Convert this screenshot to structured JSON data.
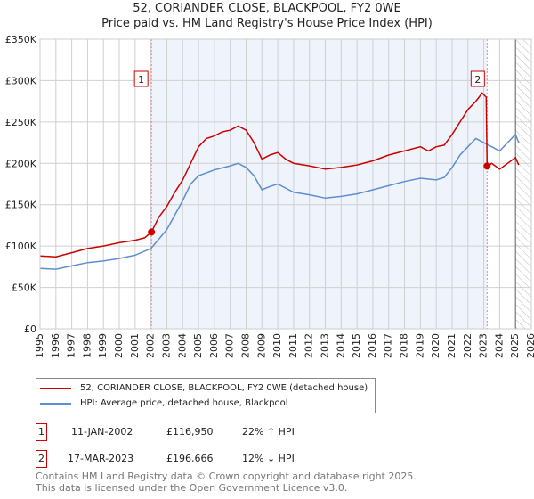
{
  "chart_data": {
    "type": "line",
    "title": "52, CORIANDER CLOSE, BLACKPOOL, FY2 0WE",
    "subtitle": "Price paid vs. HM Land Registry's House Price Index (HPI)",
    "xlim": [
      1995,
      2026
    ],
    "ylim": [
      0,
      350000
    ],
    "x_ticks": [
      "1995",
      "1996",
      "1997",
      "1998",
      "1999",
      "2000",
      "2001",
      "2002",
      "2003",
      "2004",
      "2005",
      "2006",
      "2007",
      "2008",
      "2009",
      "2010",
      "2011",
      "2012",
      "2013",
      "2014",
      "2015",
      "2016",
      "2017",
      "2018",
      "2019",
      "2020",
      "2021",
      "2022",
      "2023",
      "2024",
      "2025",
      "2026"
    ],
    "y_ticks": [
      {
        "v": 0,
        "label": "£0"
      },
      {
        "v": 50000,
        "label": "£50K"
      },
      {
        "v": 100000,
        "label": "£100K"
      },
      {
        "v": 150000,
        "label": "£150K"
      },
      {
        "v": 200000,
        "label": "£200K"
      },
      {
        "v": 250000,
        "label": "£250K"
      },
      {
        "v": 300000,
        "label": "£300K"
      },
      {
        "v": 350000,
        "label": "£350K"
      }
    ],
    "grid": true,
    "series": [
      {
        "name": "52, CORIANDER CLOSE, BLACKPOOL, FY2 0WE (detached house)",
        "color": "#cc0000",
        "x": [
          1995,
          1996,
          1997,
          1998,
          1999,
          2000,
          2001,
          2001.6,
          2002.03,
          2002.5,
          2003,
          2003.5,
          2004,
          2004.5,
          2005,
          2005.5,
          2006,
          2006.5,
          2007,
          2007.5,
          2008,
          2008.5,
          2009,
          2009.5,
          2010,
          2010.5,
          2011,
          2012,
          2013,
          2014,
          2015,
          2016,
          2017,
          2018,
          2019,
          2019.5,
          2020,
          2020.5,
          2021,
          2021.5,
          2022,
          2022.5,
          2022.9,
          2023.15,
          2023.21,
          2023.5,
          2024,
          2024.5,
          2025,
          2025.2
        ],
        "y": [
          88000,
          87000,
          92000,
          97000,
          100000,
          104000,
          107000,
          110000,
          116950,
          135000,
          148000,
          165000,
          180000,
          200000,
          220000,
          230000,
          233000,
          238000,
          240000,
          245000,
          240000,
          225000,
          205000,
          210000,
          213000,
          205000,
          200000,
          197000,
          193000,
          195000,
          198000,
          203000,
          210000,
          215000,
          220000,
          215000,
          220000,
          222000,
          235000,
          250000,
          265000,
          275000,
          285000,
          280000,
          196666,
          200000,
          193000,
          200000,
          207000,
          198000
        ]
      },
      {
        "name": "HPI: Average price, detached house, Blackpool",
        "color": "#5b8fd0",
        "x": [
          1995,
          1996,
          1997,
          1998,
          1999,
          2000,
          2001,
          2002,
          2003,
          2004,
          2004.5,
          2005,
          2006,
          2007,
          2007.5,
          2008,
          2008.5,
          2009,
          2009.5,
          2010,
          2011,
          2012,
          2013,
          2014,
          2015,
          2016,
          2017,
          2018,
          2019,
          2020,
          2020.5,
          2021,
          2021.5,
          2022,
          2022.5,
          2023,
          2023.5,
          2024,
          2024.5,
          2025,
          2025.2
        ],
        "y": [
          73000,
          72000,
          76000,
          80000,
          82000,
          85000,
          89000,
          97000,
          120000,
          155000,
          175000,
          185000,
          192000,
          197000,
          200000,
          195000,
          185000,
          168000,
          172000,
          175000,
          165000,
          162000,
          158000,
          160000,
          163000,
          168000,
          173000,
          178000,
          182000,
          180000,
          183000,
          195000,
          210000,
          220000,
          230000,
          225000,
          220000,
          215000,
          225000,
          235000,
          225000
        ]
      }
    ],
    "annotations": [
      {
        "label": "1",
        "x": 2002.03,
        "y": 116950
      },
      {
        "label": "2",
        "x": 2023.21,
        "y": 196666
      }
    ],
    "shaded_range": [
      2002.03,
      2023.21
    ],
    "hatched_from": 2025.0,
    "legend": "below"
  },
  "table": [
    {
      "num": "1",
      "date": "11-JAN-2002",
      "price": "£116,950",
      "hpi": "22% ↑ HPI"
    },
    {
      "num": "2",
      "date": "17-MAR-2023",
      "price": "£196,666",
      "hpi": "12% ↓ HPI"
    }
  ],
  "footer": [
    "Contains HM Land Registry data © Crown copyright and database right 2025.",
    "This data is licensed under the Open Government Licence v3.0."
  ]
}
